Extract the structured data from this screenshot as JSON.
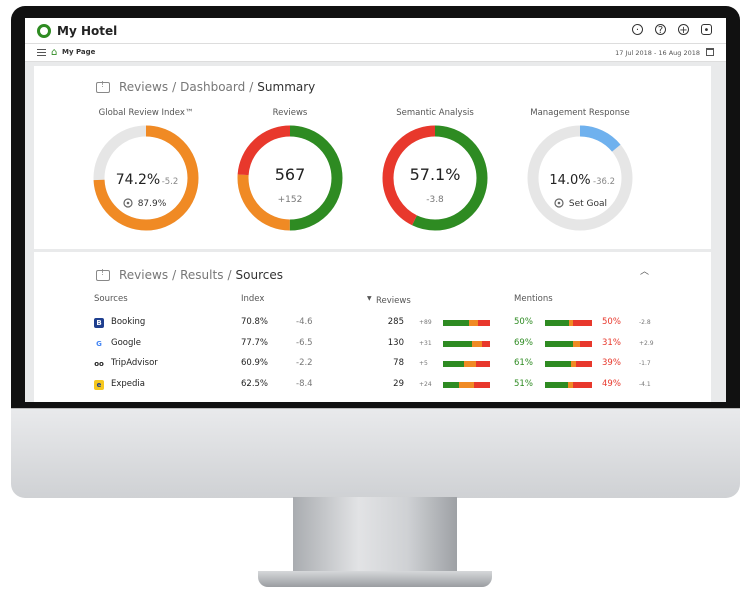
{
  "app": {
    "title": "My Hotel",
    "breadcrumb": "My Page",
    "date_range": "17 Jul 2018 - 16 Aug 2018"
  },
  "colors": {
    "green": "#2e8b22",
    "orange": "#f08a24",
    "red": "#e8382c",
    "blue": "#6fb1ee",
    "track": "#e6e6e6"
  },
  "summary": {
    "header": {
      "part1": "Reviews",
      "part2": "Dashboard",
      "part3": "Summary",
      "sep": "/"
    },
    "gauges": [
      {
        "label": "Global Review Index™",
        "main": "74.2%",
        "delta": "-5.2",
        "sub": "87.9%",
        "sub_icon": "target-icon",
        "segments": [
          {
            "value": 74.2,
            "color": "#f08a24"
          }
        ]
      },
      {
        "label": "Reviews",
        "main": "567",
        "delta": "+152",
        "sub": "",
        "segments": [
          {
            "value": 50,
            "color": "#2e8b22"
          },
          {
            "value": 26,
            "color": "#f08a24"
          },
          {
            "value": 24,
            "color": "#e8382c"
          }
        ]
      },
      {
        "label": "Semantic Analysis",
        "main": "57.1%",
        "delta": "-3.8",
        "sub": "",
        "segments": [
          {
            "value": 57.1,
            "color": "#2e8b22"
          },
          {
            "value": 42.9,
            "color": "#e8382c"
          }
        ]
      },
      {
        "label": "Management Response",
        "main": "14.0%",
        "delta": "-36.2",
        "sub": "Set Goal",
        "sub_icon": "target-icon",
        "segments": [
          {
            "value": 14.0,
            "color": "#6fb1ee"
          }
        ]
      }
    ]
  },
  "sources": {
    "header": {
      "part1": "Reviews",
      "part2": "Results",
      "part3": "Sources",
      "sep": "/"
    },
    "columns": {
      "sources": "Sources",
      "index": "Index",
      "reviews": "Reviews",
      "mentions": "Mentions"
    },
    "rows": [
      {
        "name": "Booking",
        "icon": "booking-icon",
        "glyph": "B",
        "icon_bg": "#1f3f8f",
        "icon_fg": "#ffffff",
        "index": "70.8%",
        "index_delta": "-4.6",
        "reviews": "285",
        "reviews_delta": "+89",
        "review_mix": [
          55,
          20,
          25
        ],
        "mention_pos": "50%",
        "mention_neg": "50%",
        "mention_mix": [
          50,
          10,
          40
        ],
        "mention_delta": "-2.8"
      },
      {
        "name": "Google",
        "icon": "google-icon",
        "glyph": "G",
        "icon_bg": "#ffffff",
        "icon_fg": "#4285f4",
        "index": "77.7%",
        "index_delta": "-6.5",
        "reviews": "130",
        "reviews_delta": "+31",
        "review_mix": [
          62,
          22,
          16
        ],
        "mention_pos": "69%",
        "mention_neg": "31%",
        "mention_mix": [
          60,
          15,
          25
        ],
        "mention_delta": "+2.9"
      },
      {
        "name": "TripAdvisor",
        "icon": "tripadvisor-icon",
        "glyph": "oo",
        "icon_bg": "#ffffff",
        "icon_fg": "#222222",
        "index": "60.9%",
        "index_delta": "-2.2",
        "reviews": "78",
        "reviews_delta": "+5",
        "review_mix": [
          45,
          25,
          30
        ],
        "mention_pos": "61%",
        "mention_neg": "39%",
        "mention_mix": [
          55,
          12,
          33
        ],
        "mention_delta": "-1.7"
      },
      {
        "name": "Expedia",
        "icon": "expedia-icon",
        "glyph": "e",
        "icon_bg": "#f6c81f",
        "icon_fg": "#1f3f8f",
        "index": "62.5%",
        "index_delta": "-8.4",
        "reviews": "29",
        "reviews_delta": "+24",
        "review_mix": [
          35,
          30,
          35
        ],
        "mention_pos": "51%",
        "mention_neg": "49%",
        "mention_mix": [
          48,
          12,
          40
        ],
        "mention_delta": "-4.1"
      }
    ]
  }
}
